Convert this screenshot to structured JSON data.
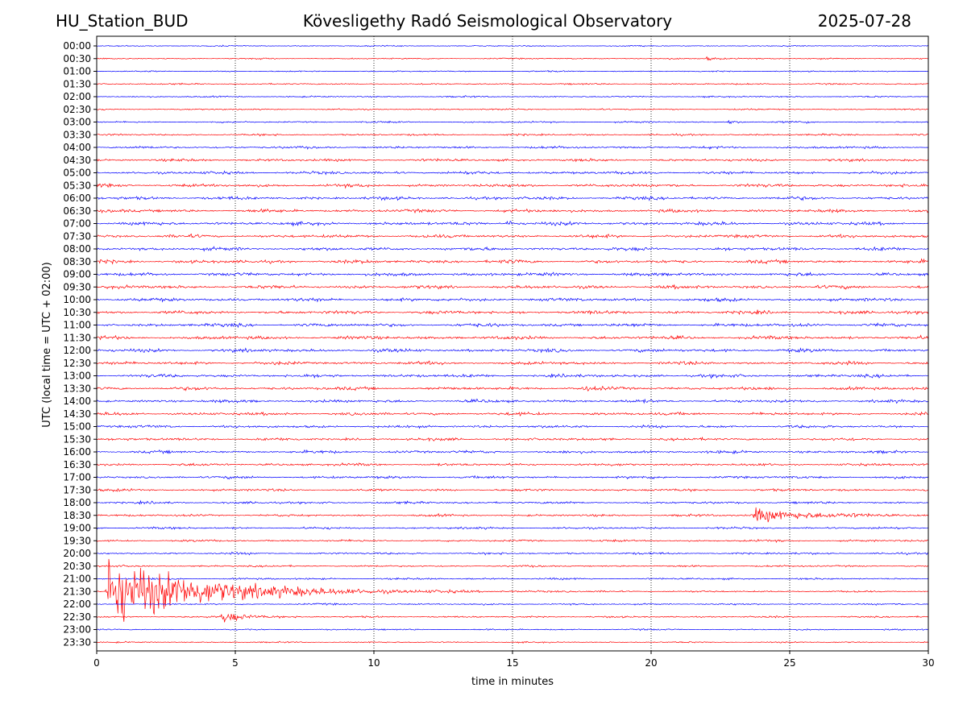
{
  "header": {
    "station": "HU_Station_BUD",
    "observatory": "Kövesligethy Radó Seismological Observatory",
    "date": "2025-07-28"
  },
  "chart_data": {
    "type": "line",
    "title": "Kövesligethy Radó Seismological Observatory",
    "xlabel": "time in minutes",
    "ylabel": "UTC (local time = UTC + 02:00)",
    "xlim": [
      0,
      30
    ],
    "x_ticks": [
      "0",
      "5",
      "10",
      "15",
      "20",
      "25",
      "30"
    ],
    "x_tick_values": [
      0,
      5,
      10,
      15,
      20,
      25,
      30
    ],
    "grid": "vertical dotted",
    "rows": [
      "00:00",
      "00:30",
      "01:00",
      "01:30",
      "02:00",
      "02:30",
      "03:00",
      "03:30",
      "04:00",
      "04:30",
      "05:00",
      "05:30",
      "06:00",
      "06:30",
      "07:00",
      "07:30",
      "08:00",
      "08:30",
      "09:00",
      "09:30",
      "10:00",
      "10:30",
      "11:00",
      "11:30",
      "12:00",
      "12:30",
      "13:00",
      "13:30",
      "14:00",
      "14:30",
      "15:00",
      "15:30",
      "16:00",
      "16:30",
      "17:00",
      "17:30",
      "18:00",
      "18:30",
      "19:00",
      "19:30",
      "20:00",
      "20:30",
      "21:00",
      "21:30",
      "22:00",
      "22:30",
      "23:00",
      "23:30"
    ],
    "trace_colors": [
      "#0000ff",
      "#ff0000"
    ],
    "noise_level": [
      0.6,
      0.7,
      0.7,
      0.8,
      0.8,
      0.8,
      0.9,
      1.0,
      1.3,
      1.4,
      1.6,
      1.7,
      1.7,
      1.7,
      1.8,
      1.7,
      1.8,
      1.8,
      1.8,
      1.8,
      1.8,
      1.8,
      1.8,
      1.8,
      1.8,
      1.7,
      1.7,
      1.7,
      1.6,
      1.6,
      1.5,
      1.5,
      1.5,
      1.4,
      1.4,
      1.3,
      1.3,
      1.2,
      1.2,
      1.1,
      1.1,
      1.0,
      1.0,
      0.9,
      0.9,
      0.9,
      0.8,
      0.7
    ],
    "events": [
      {
        "row": "00:30",
        "minute": 22.0,
        "amplitude": 2.0,
        "duration": 1.4
      },
      {
        "row": "03:00",
        "minute": 22.8,
        "amplitude": 2.5,
        "duration": 0.8
      },
      {
        "row": "03:00",
        "minute": 25.6,
        "amplitude": 2.5,
        "duration": 0.2
      },
      {
        "row": "07:00",
        "minute": 14.8,
        "amplitude": 4.0,
        "duration": 0.7
      },
      {
        "row": "13:30",
        "minute": 17.5,
        "amplitude": 3.0,
        "duration": 0.6
      },
      {
        "row": "18:30",
        "minute": 23.7,
        "amplitude": 8.0,
        "duration": 5.5
      },
      {
        "row": "21:30",
        "minute": 0.4,
        "amplitude": 40.0,
        "duration": 9.0
      },
      {
        "row": "22:30",
        "minute": 4.5,
        "amplitude": 6.0,
        "duration": 2.5
      }
    ]
  }
}
